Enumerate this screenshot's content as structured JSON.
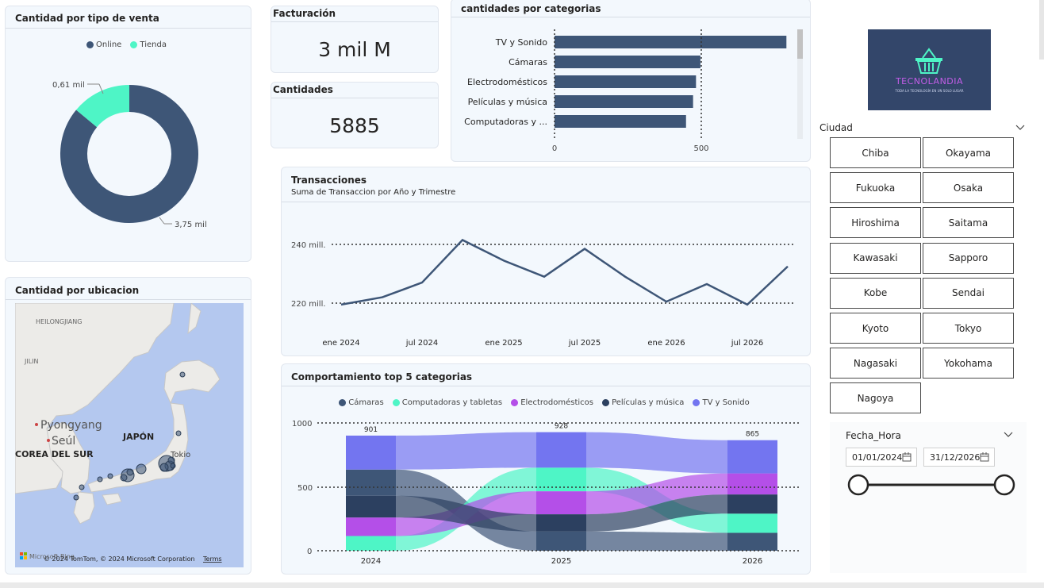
{
  "donut": {
    "title": "Cantidad por tipo de venta",
    "legend": [
      {
        "label": "Online",
        "color": "#3e5677"
      },
      {
        "label": "Tienda",
        "color": "#4ef5c6"
      }
    ],
    "label_tienda": "0,61 mil",
    "label_online": "3,75 mil"
  },
  "kpi": {
    "facturacion_title": "Facturación",
    "facturacion_value": "3 mil M",
    "cantidades_title": "Cantidades",
    "cantidades_value": "5885"
  },
  "bar": {
    "title": "cantidades por categorias",
    "tick_0": "0",
    "tick_500": "500"
  },
  "line": {
    "title": "Transacciones",
    "subtitle": "Suma de Transaccion por Año y Trimestre",
    "y_240": "240 mill.",
    "y_220": "220 mill.",
    "x_labels": [
      "ene 2024",
      "jul 2024",
      "ene 2025",
      "jul 2025",
      "ene 2026",
      "jul 2026"
    ]
  },
  "ribbon": {
    "title": "Comportamiento top 5 categorias",
    "y_labels": [
      "1000",
      "500",
      "0"
    ],
    "x_labels": [
      "2024",
      "2025",
      "2026"
    ],
    "totals": [
      "901",
      "928",
      "865"
    ],
    "legend": [
      {
        "label": "Cámaras",
        "color": "#3e5677"
      },
      {
        "label": "Computadoras y tabletas",
        "color": "#4ef5c6"
      },
      {
        "label": "Electrodomésticos",
        "color": "#b44fe8"
      },
      {
        "label": "Películas y música",
        "color": "#2c4060"
      },
      {
        "label": "TV y Sonido",
        "color": "#7375f0"
      }
    ]
  },
  "map": {
    "title": "Cantidad por ubicacion",
    "labels": {
      "heilongjiang": "HEILONGJIANG",
      "jilin": "JILIN",
      "pyongyang": "Pyongyang",
      "seul": "Seúl",
      "corea": "COREA DEL SUR",
      "japon": "JAPÓN",
      "tokio": "Tokio"
    },
    "brand": "Microsoft Bing",
    "copyright": "© 2024 TomTom, © 2024 Microsoft Corporation",
    "terms": "Terms"
  },
  "logo": {
    "name": "TECNOLANDIA",
    "tagline": "TODA LA TECNOLOGÍA EN UN SOLO LUGAR"
  },
  "ciudad": {
    "title": "Ciudad",
    "buttons": [
      "Chiba",
      "Okayama",
      "Fukuoka",
      "Osaka",
      "Hiroshima",
      "Saitama",
      "Kawasaki",
      "Sapporo",
      "Kobe",
      "Sendai",
      "Kyoto",
      "Tokyo",
      "Nagasaki",
      "Yokohama",
      "Nagoya"
    ]
  },
  "fecha": {
    "title": "Fecha_Hora",
    "start": "01/01/2024",
    "end": "31/12/2026"
  },
  "chart_data": [
    {
      "type": "pie",
      "title": "Cantidad por tipo de venta",
      "categories": [
        "Online",
        "Tienda"
      ],
      "values": [
        3750,
        610
      ]
    },
    {
      "type": "bar",
      "title": "cantidades por categorias",
      "categories": [
        "TV y Sonido",
        "Cámaras",
        "Electrodomésticos",
        "Películas y música",
        "Computadoras y ..."
      ],
      "values": [
        790,
        497,
        482,
        472,
        448
      ],
      "xlim": [
        0,
        800
      ]
    },
    {
      "type": "line",
      "title": "Transacciones",
      "x": [
        "2024 T1",
        "2024 T2",
        "2024 T3",
        "2024 T4",
        "2025 T1",
        "2025 T2",
        "2025 T3",
        "2025 T4",
        "2026 T1",
        "2026 T2",
        "2026 T3",
        "2026 T4"
      ],
      "values": [
        219.5,
        222,
        227,
        241.5,
        234.5,
        229,
        238.5,
        229,
        220.5,
        226.5,
        219.5,
        232.5
      ],
      "ylim": [
        217,
        243
      ]
    },
    {
      "type": "area",
      "title": "Comportamiento top 5 categorias",
      "categories": [
        "2024",
        "2025",
        "2026"
      ],
      "series": [
        {
          "name": "Cámaras",
          "values": [
            205,
            150,
            140
          ]
        },
        {
          "name": "Computadoras y tabletas",
          "values": [
            115,
            185,
            150
          ]
        },
        {
          "name": "Electrodomésticos",
          "values": [
            145,
            180,
            165
          ]
        },
        {
          "name": "Películas y música",
          "values": [
            170,
            135,
            150
          ]
        },
        {
          "name": "TV y Sonido",
          "values": [
            266,
            278,
            260
          ]
        }
      ],
      "ylim": [
        0,
        1000
      ]
    }
  ]
}
